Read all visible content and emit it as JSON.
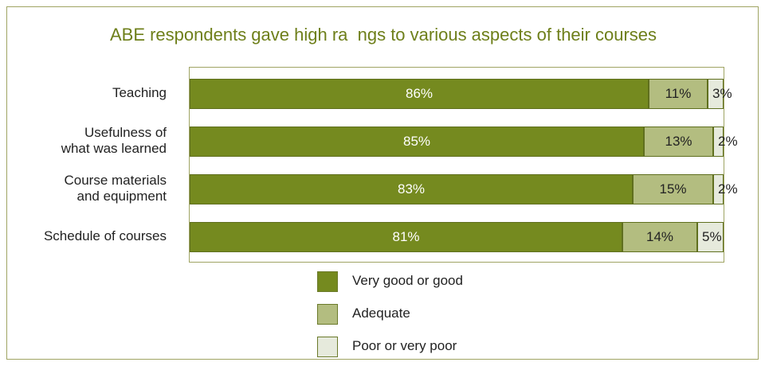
{
  "chart_data": {
    "type": "bar",
    "orientation": "horizontal",
    "stacked": true,
    "percent_stacked": true,
    "title": "ABE respondents gave high ra  ngs to various aspects of their courses",
    "categories": [
      "Teaching",
      "Usefulness of\nwhat was learned",
      "Course materials\nand equipment",
      "Schedule of courses"
    ],
    "series": [
      {
        "name": "Very good or good",
        "values": [
          86,
          85,
          83,
          81
        ],
        "labels": [
          "86%",
          "85%",
          "83%",
          "81%"
        ],
        "color": "#758a1f",
        "label_color": "#ffffff"
      },
      {
        "name": "Adequate",
        "values": [
          11,
          13,
          15,
          14
        ],
        "labels": [
          "11%",
          "13%",
          "15%",
          "14%"
        ],
        "color": "#b3bd80",
        "label_color": "#222222"
      },
      {
        "name": "Poor or very poor",
        "values": [
          3,
          2,
          2,
          5
        ],
        "labels": [
          "3%",
          "2%",
          "2%",
          "5%"
        ],
        "color": "#e6eadc",
        "label_color": "#222222"
      }
    ],
    "xlim": [
      0,
      100
    ],
    "grid": false,
    "legend_position": "bottom"
  }
}
